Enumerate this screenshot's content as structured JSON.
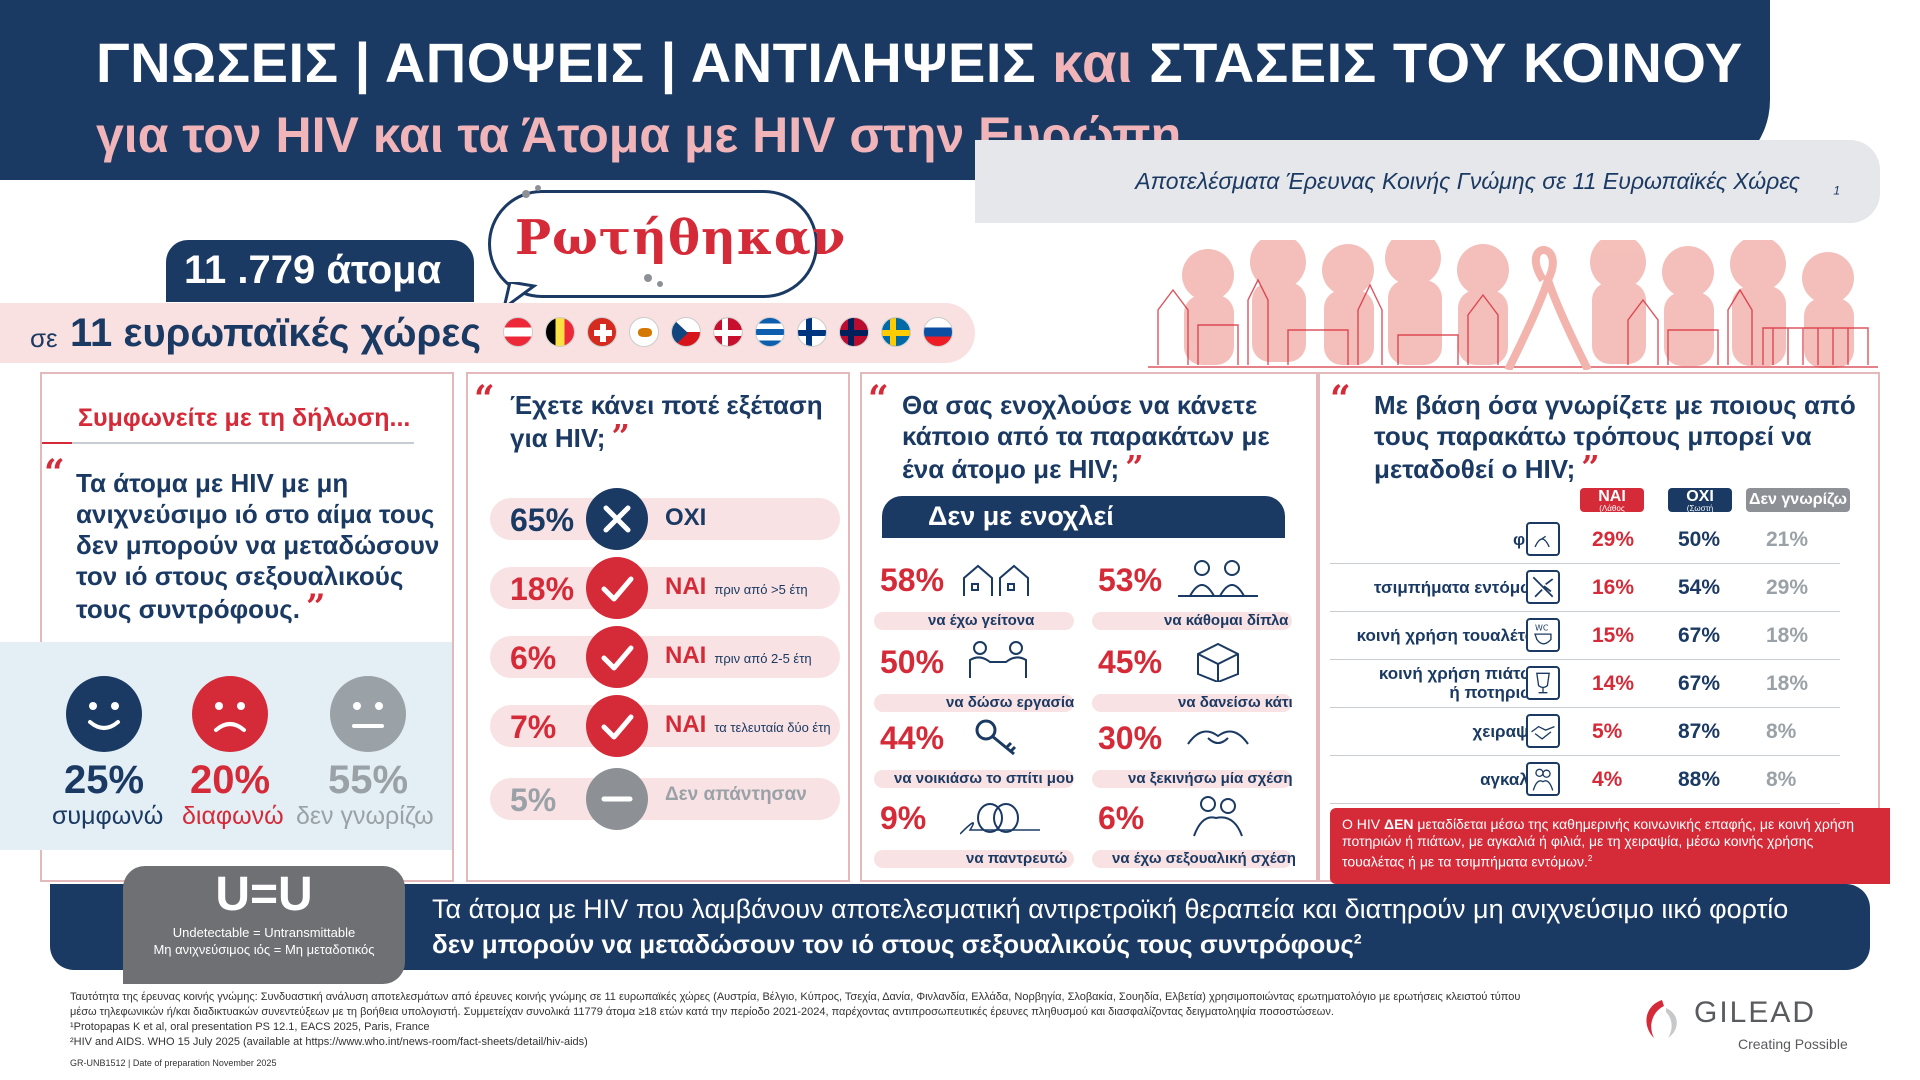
{
  "header": {
    "line1_a": "ΓΝΩΣΕΙΣ | ΑΠΟΨΕΙΣ | ΑΝΤΙΛΗΨΕΙΣ",
    "line1_k": "και",
    "line1_b": "ΣΤΑΣΕΙΣ ΤΟΥ ΚΟΙΝΟΥ",
    "line2": "για τον HIV  και τα Άτομα με HIV στην Ευρώπη.",
    "subtitle": "Αποτελέσματα Έρευνας Κοινής Γνώμης σε 11 Ευρωπαϊκές Χώρες",
    "subtitle_sup": "1"
  },
  "survey": {
    "asked": "Ρωτήθηκαν",
    "people": "11 .779 άτομα",
    "in_prefix": "σε",
    "countries": "11 ευρωπαϊκές χώρες",
    "flags": [
      {
        "name": "austria",
        "c": [
          "#ed2939",
          "#ffffff",
          "#ed2939"
        ],
        "dir": "h"
      },
      {
        "name": "belgium",
        "c": [
          "#000000",
          "#fae042",
          "#ed2939"
        ],
        "dir": "v"
      },
      {
        "name": "switzerland",
        "c": [
          "#d52b1e"
        ],
        "cross": "#ffffff"
      },
      {
        "name": "cyprus",
        "c": [
          "#ffffff"
        ],
        "dot": "#d57800"
      },
      {
        "name": "czechia",
        "c": [
          "#ffffff",
          "#d7141a"
        ],
        "dir": "h",
        "tri": "#11457e"
      },
      {
        "name": "denmark",
        "c": [
          "#c8102e"
        ],
        "nordic": "#ffffff"
      },
      {
        "name": "greece",
        "c": [
          "#0d5eaf",
          "#ffffff",
          "#0d5eaf",
          "#ffffff",
          "#0d5eaf"
        ],
        "dir": "h"
      },
      {
        "name": "finland",
        "c": [
          "#ffffff"
        ],
        "nordic": "#003580"
      },
      {
        "name": "norway",
        "c": [
          "#ba0c2f"
        ],
        "nordic": "#00205b"
      },
      {
        "name": "sweden",
        "c": [
          "#006aa7"
        ],
        "nordic": "#fecc00"
      },
      {
        "name": "slovakia",
        "c": [
          "#ffffff",
          "#0b4ea2",
          "#ee1c25"
        ],
        "dir": "h"
      }
    ]
  },
  "panel1": {
    "title": "Συμφωνείτε με τη δήλωση...",
    "quote_l1": "Τα άτομα με HIV με μη",
    "quote_l2": "ανιχνεύσιμο ιό στο αίμα τους",
    "quote_l3": "δεν μπορούν να μεταδώσουν",
    "quote_l4": "τον ιό στους σεξουαλικούς",
    "quote_l5": "τους συντρόφους.",
    "stats": [
      {
        "pct": "25%",
        "label": "συμφωνώ",
        "color": "#1b3a63",
        "mood": "happy"
      },
      {
        "pct": "20%",
        "label": "διαφωνώ",
        "color": "#d52b39",
        "mood": "sad"
      },
      {
        "pct": "55%",
        "label": "δεν γνωρίζω",
        "color": "#9aa1a7",
        "mood": "neutral"
      }
    ]
  },
  "panel2": {
    "q1": "Έχετε κάνει ποτέ εξέταση",
    "q2": "για HIV;",
    "rows": [
      {
        "pct": "65%",
        "label": "ΟΧΙ",
        "note": "",
        "icon": "x",
        "color": "#1b3a63",
        "pctColor": "#1b3a63"
      },
      {
        "pct": "18%",
        "label": "ΝΑΙ",
        "note": "πριν από >5 έτη",
        "icon": "check",
        "color": "#d52b39",
        "pctColor": "#d52b39"
      },
      {
        "pct": "6%",
        "label": "ΝΑΙ",
        "note": "πριν από 2-5 έτη",
        "icon": "check",
        "color": "#d52b39",
        "pctColor": "#d52b39"
      },
      {
        "pct": "7%",
        "label": "ΝΑΙ",
        "note": "τα τελευταία δύο έτη",
        "icon": "check",
        "color": "#d52b39",
        "pctColor": "#d52b39"
      },
      {
        "pct": "5%",
        "label": "Δεν απάντησαν",
        "note": "",
        "icon": "dash",
        "color": "#8d9196",
        "pctColor": "#9aa1a7"
      }
    ]
  },
  "panel3": {
    "q1": "Θα σας ενοχλούσε να κάνετε",
    "q2": "κάποιο από τα παρακάτων με",
    "q3": "ένα άτομο με HIV;",
    "banner": "Δεν με ενοχλεί",
    "items": [
      {
        "pct": "58%",
        "label": "να έχω γείτονα",
        "icon": "houses-icon"
      },
      {
        "pct": "53%",
        "label": "να κάθομαι δίπλα",
        "icon": "sitting-people-icon"
      },
      {
        "pct": "50%",
        "label": "να δώσω εργασία",
        "icon": "handshake-work-icon"
      },
      {
        "pct": "45%",
        "label": "να δανείσω κάτι",
        "icon": "box-icon"
      },
      {
        "pct": "44%",
        "label": "να νοικιάσω το σπίτι μου",
        "icon": "keys-icon"
      },
      {
        "pct": "30%",
        "label": "να ξεκινήσω μία σχέση",
        "icon": "holding-hands-icon"
      },
      {
        "pct": "9%",
        "label": "να παντρευτώ",
        "icon": "rings-icon"
      },
      {
        "pct": "6%",
        "label": "να έχω σεξουαλική σχέση",
        "icon": "couple-icon"
      }
    ]
  },
  "panel4": {
    "q1": "Με βάση όσα γνωρίζετε με ποιους από",
    "q2": "τους παρακάτω τρόπους μπορεί να",
    "q3": "μεταδοθεί ο HIV;",
    "head_yes": "ΝΑΙ",
    "head_yes_sub": "(Λάθος απάντηση)",
    "head_no": "ΟΧΙ",
    "head_no_sub": "(Σωστή απάντηση)",
    "head_dk": "Δεν γνωρίζω",
    "rows": [
      {
        "label": "φιλί",
        "yes": "29%",
        "no": "50%",
        "dk": "21%",
        "icon": "kiss-icon"
      },
      {
        "label": "τσιμπήματα εντόμων",
        "yes": "16%",
        "no": "54%",
        "dk": "29%",
        "icon": "mosquito-icon"
      },
      {
        "label": "κοινή χρήση τουαλέτας",
        "yes": "15%",
        "no": "67%",
        "dk": "18%",
        "icon": "toilet-icon"
      },
      {
        "label": "κοινή χρήση πιάτων ή ποτηριών",
        "label_a": "κοινή χρήση πιάτων",
        "label_b": "ή ποτηριών",
        "yes": "14%",
        "no": "67%",
        "dk": "18%",
        "icon": "glass-icon"
      },
      {
        "label": "χειραψία",
        "yes": "5%",
        "no": "87%",
        "dk": "8%",
        "icon": "handshake-icon"
      },
      {
        "label": "αγκαλιά",
        "yes": "4%",
        "no": "88%",
        "dk": "8%",
        "icon": "hug-icon"
      }
    ],
    "note_a": "Ο HIV",
    "note_b": "ΔΕΝ",
    "note_c": "μεταδίδεται μέσω της καθημερινής κοινωνικής επαφής, με κοινή χρήση ποτηριών ή πιάτων, με αγκαλιά ή φιλιά, με τη χειραψία, μέσω κοινής χρήσης τουαλέτας ή με τα τσιμπήματα εντόμων.",
    "note_sup": "2"
  },
  "uu": {
    "big": "U=U",
    "en": "Undetectable = Untransmittable",
    "gr": "Μη ανιχνεύσιμος ιός = Μη μεταδοτικός",
    "t1": "Τα άτομα με HIV που λαμβάνουν αποτελεσματική αντιρετροϊκή θεραπεία και διατηρούν μη ανιχνεύσιμο ιικό φορτίο",
    "t2": "δεν μπορούν να μεταδώσουν τον ιό στους σεξουαλικούς τους συντρόφους",
    "t2_sup": "2"
  },
  "footer": {
    "p1": "Ταυτότητα της έρευνας κοινής γνώμης: Συνδυαστική ανάλυση αποτελεσμάτων από  έρευνες κοινής γνώμης  σε 11 ευρωπαϊκές χώρες (Αυστρία, Βέλγιο, Κύπρος, Τσεχία, Δανία, Φινλανδία, Ελλάδα, Νορβηγία, Σλοβακία, Σουηδία, Ελβετία) χρησιμοποιώντας ερωτηματολόγιο με ερωτήσεις κλειστού τύπου μέσω τηλεφωνικών ή/και διαδικτυακών συνεντεύξεων με τη βοήθεια υπολογιστή. Συμμετείχαν συνολικά 11779 άτομα ≥18 ετών κατά την περίοδο 2021-2024, παρέχοντας αντιπροσωπευτικές έρευνες πληθυσμού και διασφαλίζοντας δειγματοληψία ποσοστώσεων.",
    "r1": "¹Protopapas K et al, oral presentation PS 12.1, EACS 2025, Paris, France",
    "r2": "²HIV and AIDS. WHO 15 July 2025 (available at https://www.who.int/news-room/fact-sheets/detail/hiv-aids)",
    "code": "GR-UNB1512 | Date of preparation November 2025"
  },
  "brand": {
    "name": "GILEAD",
    "tagline": "Creating Possible"
  }
}
